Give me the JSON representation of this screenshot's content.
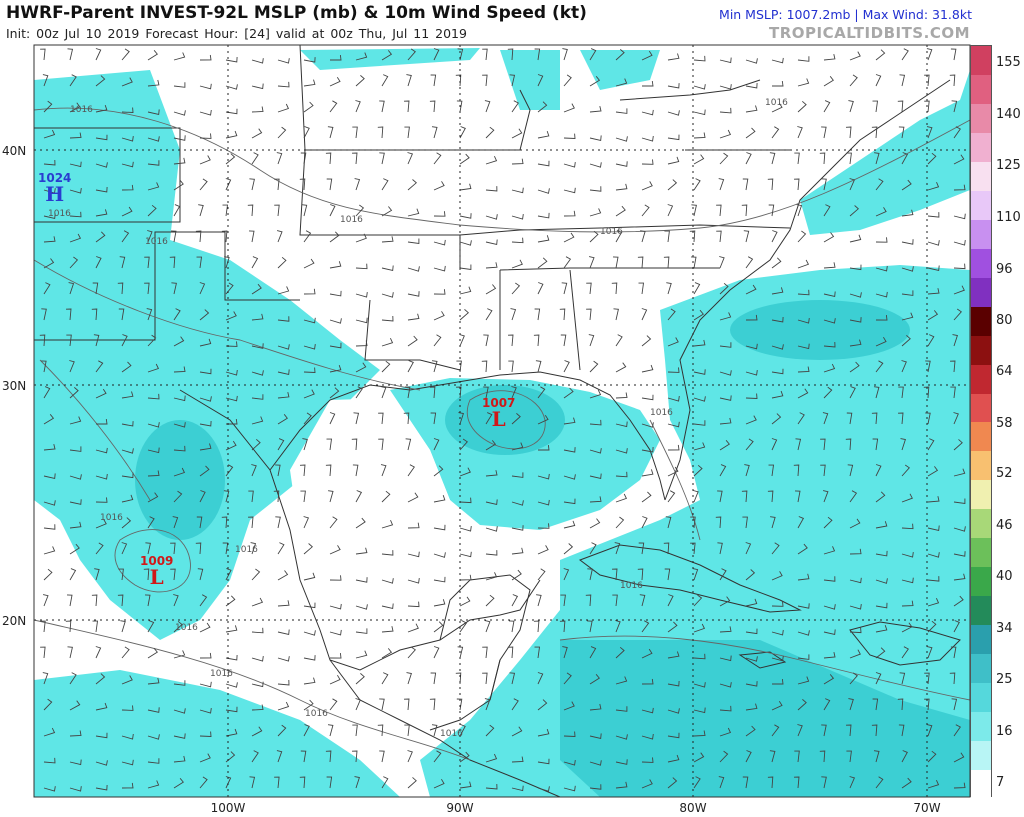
{
  "header": {
    "title": "HWRF-Parent INVEST-92L MSLP (mb) & 10m Wind Speed (kt)",
    "subtitle": "Init: 00z Jul 10 2019   Forecast Hour: [24]   valid at 00z Thu, Jul 11 2019",
    "stats": "Min MSLP: 1007.2mb | Max Wind: 31.8kt",
    "brand": "TROPICALTIDBITS.COM"
  },
  "axes": {
    "lat_labels": [
      "40N",
      "30N",
      "20N"
    ],
    "lon_labels": [
      "100W",
      "90W",
      "80W",
      "70W"
    ]
  },
  "colorbar": {
    "labels": [
      "155",
      "140",
      "125",
      "110",
      "96",
      "80",
      "64",
      "58",
      "52",
      "46",
      "40",
      "34",
      "25",
      "16",
      "7"
    ],
    "colors": [
      "#ffffff",
      "#b8f5f5",
      "#7ceaea",
      "#55d8dc",
      "#3fbfc8",
      "#2a9fad",
      "#238b5a",
      "#3aa84a",
      "#6cc05a",
      "#a8d878",
      "#f0f0b0",
      "#f8c070",
      "#f08850",
      "#e05050",
      "#c02830",
      "#8c1010",
      "#5a0000",
      "#8030c0",
      "#a050e0",
      "#c890f0",
      "#e8c8f8",
      "#f8e0f0",
      "#f0b0d0",
      "#e88aa8",
      "#e06080",
      "#d04060"
    ]
  },
  "systems": [
    {
      "type": "L",
      "value": "1007",
      "color": "#d01818"
    },
    {
      "type": "L",
      "value": "1009",
      "color": "#d01818"
    },
    {
      "type": "H",
      "value": "1024",
      "color": "#2a3cd0"
    }
  ],
  "isobar_labels": [
    "1016",
    "1016",
    "1016",
    "1016",
    "1016",
    "1016",
    "1016",
    "1016",
    "1016",
    "1016",
    "1016",
    "1016",
    "1016",
    "1016"
  ],
  "colors": {
    "ocean_wind": "#5fe6e6",
    "ocean_wind_strong": "#3ccfd3",
    "land": "#ffffff",
    "border": "#333333",
    "isobar": "#666666",
    "barb": "#444444"
  }
}
